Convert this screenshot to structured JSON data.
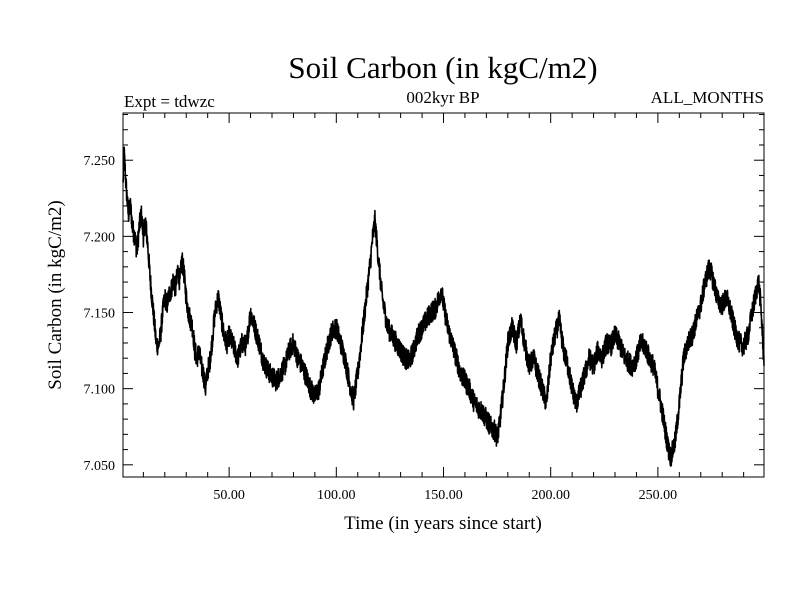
{
  "chart_data": {
    "type": "line",
    "title": "Soil Carbon (in kgC/m2)",
    "subtitle_left": "Expt = tdwzc",
    "subtitle_center": "002kyr BP",
    "subtitle_right": "ALL_MONTHS",
    "xlabel": "Time (in years since start)",
    "ylabel": "Soil Carbon (in kgC/m2)",
    "xlim": [
      0.5,
      299.5
    ],
    "ylim": [
      7.042,
      7.281
    ],
    "x_ticks": [
      50,
      100,
      150,
      200,
      250
    ],
    "x_tick_labels": [
      "50.00",
      "100.00",
      "150.00",
      "200.00",
      "250.00"
    ],
    "y_ticks": [
      7.05,
      7.1,
      7.15,
      7.2,
      7.25
    ],
    "y_tick_labels": [
      "7.050",
      "7.100",
      "7.150",
      "7.200",
      "7.250"
    ],
    "series": [
      {
        "name": "Soil Carbon",
        "color": "#000000",
        "points": [
          [
            0.5,
            7.235
          ],
          [
            1,
            7.255
          ],
          [
            2,
            7.232
          ],
          [
            3,
            7.214
          ],
          [
            4,
            7.22
          ],
          [
            5,
            7.205
          ],
          [
            6,
            7.2
          ],
          [
            7,
            7.19
          ],
          [
            8,
            7.205
          ],
          [
            9,
            7.215
          ],
          [
            10,
            7.2
          ],
          [
            11,
            7.21
          ],
          [
            12,
            7.195
          ],
          [
            13,
            7.175
          ],
          [
            14,
            7.16
          ],
          [
            15,
            7.145
          ],
          [
            16,
            7.13
          ],
          [
            17,
            7.128
          ],
          [
            18,
            7.135
          ],
          [
            19,
            7.15
          ],
          [
            20,
            7.16
          ],
          [
            21,
            7.155
          ],
          [
            22,
            7.162
          ],
          [
            23,
            7.165
          ],
          [
            24,
            7.172
          ],
          [
            25,
            7.165
          ],
          [
            26,
            7.178
          ],
          [
            27,
            7.17
          ],
          [
            28,
            7.185
          ],
          [
            29,
            7.175
          ],
          [
            30,
            7.16
          ],
          [
            31,
            7.15
          ],
          [
            32,
            7.145
          ],
          [
            33,
            7.14
          ],
          [
            34,
            7.125
          ],
          [
            35,
            7.12
          ],
          [
            36,
            7.125
          ],
          [
            37,
            7.115
          ],
          [
            38,
            7.11
          ],
          [
            39,
            7.1
          ],
          [
            40,
            7.112
          ],
          [
            41,
            7.118
          ],
          [
            42,
            7.13
          ],
          [
            43,
            7.145
          ],
          [
            44,
            7.155
          ],
          [
            45,
            7.16
          ],
          [
            46,
            7.15
          ],
          [
            47,
            7.14
          ],
          [
            48,
            7.132
          ],
          [
            49,
            7.13
          ],
          [
            50,
            7.135
          ],
          [
            52,
            7.128
          ],
          [
            54,
            7.12
          ],
          [
            56,
            7.13
          ],
          [
            58,
            7.128
          ],
          [
            60,
            7.15
          ],
          [
            62,
            7.14
          ],
          [
            64,
            7.13
          ],
          [
            66,
            7.118
          ],
          [
            68,
            7.112
          ],
          [
            70,
            7.108
          ],
          [
            72,
            7.105
          ],
          [
            74,
            7.11
          ],
          [
            76,
            7.115
          ],
          [
            78,
            7.125
          ],
          [
            80,
            7.13
          ],
          [
            82,
            7.12
          ],
          [
            84,
            7.115
          ],
          [
            86,
            7.108
          ],
          [
            88,
            7.1
          ],
          [
            90,
            7.095
          ],
          [
            92,
            7.1
          ],
          [
            94,
            7.115
          ],
          [
            96,
            7.128
          ],
          [
            98,
            7.138
          ],
          [
            100,
            7.14
          ],
          [
            102,
            7.13
          ],
          [
            104,
            7.12
          ],
          [
            106,
            7.105
          ],
          [
            108,
            7.092
          ],
          [
            110,
            7.11
          ],
          [
            112,
            7.135
          ],
          [
            114,
            7.16
          ],
          [
            116,
            7.185
          ],
          [
            117,
            7.2
          ],
          [
            118,
            7.21
          ],
          [
            119,
            7.195
          ],
          [
            120,
            7.18
          ],
          [
            121,
            7.165
          ],
          [
            122,
            7.155
          ],
          [
            124,
            7.14
          ],
          [
            126,
            7.135
          ],
          [
            128,
            7.13
          ],
          [
            130,
            7.125
          ],
          [
            132,
            7.12
          ],
          [
            134,
            7.118
          ],
          [
            136,
            7.125
          ],
          [
            138,
            7.135
          ],
          [
            140,
            7.14
          ],
          [
            142,
            7.145
          ],
          [
            144,
            7.15
          ],
          [
            146,
            7.152
          ],
          [
            148,
            7.16
          ],
          [
            149,
            7.165
          ],
          [
            150,
            7.155
          ],
          [
            152,
            7.14
          ],
          [
            154,
            7.13
          ],
          [
            156,
            7.12
          ],
          [
            158,
            7.11
          ],
          [
            160,
            7.105
          ],
          [
            162,
            7.1
          ],
          [
            164,
            7.092
          ],
          [
            166,
            7.088
          ],
          [
            168,
            7.085
          ],
          [
            170,
            7.08
          ],
          [
            172,
            7.075
          ],
          [
            174,
            7.072
          ],
          [
            175,
            7.068
          ],
          [
            176,
            7.075
          ],
          [
            178,
            7.1
          ],
          [
            180,
            7.13
          ],
          [
            182,
            7.14
          ],
          [
            184,
            7.13
          ],
          [
            186,
            7.145
          ],
          [
            188,
            7.128
          ],
          [
            190,
            7.115
          ],
          [
            192,
            7.12
          ],
          [
            194,
            7.11
          ],
          [
            196,
            7.1
          ],
          [
            198,
            7.09
          ],
          [
            200,
            7.12
          ],
          [
            202,
            7.135
          ],
          [
            204,
            7.145
          ],
          [
            206,
            7.125
          ],
          [
            208,
            7.115
          ],
          [
            210,
            7.1
          ],
          [
            212,
            7.09
          ],
          [
            214,
            7.1
          ],
          [
            216,
            7.11
          ],
          [
            218,
            7.12
          ],
          [
            220,
            7.115
          ],
          [
            222,
            7.125
          ],
          [
            224,
            7.12
          ],
          [
            226,
            7.13
          ],
          [
            228,
            7.128
          ],
          [
            230,
            7.135
          ],
          [
            232,
            7.13
          ],
          [
            234,
            7.122
          ],
          [
            236,
            7.118
          ],
          [
            238,
            7.115
          ],
          [
            240,
            7.12
          ],
          [
            242,
            7.13
          ],
          [
            244,
            7.128
          ],
          [
            246,
            7.12
          ],
          [
            248,
            7.115
          ],
          [
            250,
            7.1
          ],
          [
            252,
            7.085
          ],
          [
            254,
            7.068
          ],
          [
            255,
            7.06
          ],
          [
            256,
            7.055
          ],
          [
            258,
            7.065
          ],
          [
            260,
            7.09
          ],
          [
            262,
            7.12
          ],
          [
            264,
            7.13
          ],
          [
            266,
            7.135
          ],
          [
            268,
            7.145
          ],
          [
            270,
            7.155
          ],
          [
            272,
            7.17
          ],
          [
            274,
            7.18
          ],
          [
            276,
            7.17
          ],
          [
            278,
            7.158
          ],
          [
            280,
            7.155
          ],
          [
            282,
            7.16
          ],
          [
            284,
            7.15
          ],
          [
            286,
            7.138
          ],
          [
            288,
            7.13
          ],
          [
            290,
            7.128
          ],
          [
            292,
            7.135
          ],
          [
            294,
            7.15
          ],
          [
            296,
            7.165
          ],
          [
            297,
            7.17
          ],
          [
            298,
            7.155
          ],
          [
            299,
            7.13
          ],
          [
            299.5,
            7.115
          ]
        ]
      }
    ]
  }
}
